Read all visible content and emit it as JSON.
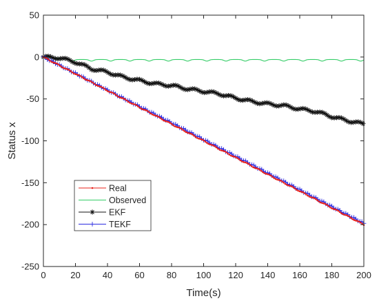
{
  "chart_data": {
    "type": "line",
    "title": "",
    "xlabel": "Time(s)",
    "ylabel": "Status x",
    "xlim": [
      0,
      200
    ],
    "ylim": [
      -250,
      50
    ],
    "xticks": [
      0,
      20,
      40,
      60,
      80,
      100,
      120,
      140,
      160,
      180,
      200
    ],
    "yticks": [
      50,
      0,
      -50,
      -100,
      -150,
      -200,
      -250
    ],
    "grid": false,
    "legend_position": "bottom-left",
    "series": [
      {
        "name": "Real",
        "color": "#e8201a",
        "marker": "dot",
        "x": [
          0,
          20,
          40,
          60,
          80,
          100,
          120,
          140,
          160,
          180,
          200
        ],
        "y": [
          0,
          -20,
          -40,
          -60,
          -80,
          -100,
          -120,
          -140,
          -160,
          -180,
          -200
        ]
      },
      {
        "name": "Observed",
        "color": "#33cc66",
        "marker": "none",
        "x": [
          0,
          5,
          10,
          15,
          20,
          30,
          40,
          60,
          80,
          100,
          120,
          140,
          160,
          180,
          200
        ],
        "y": [
          0,
          -0.5,
          -1.5,
          -2.5,
          -3,
          -3,
          -3,
          -3,
          -3,
          -3,
          -3,
          -3,
          -3,
          -3,
          -3
        ]
      },
      {
        "name": "EKF",
        "color": "#111111",
        "marker": "asterisk",
        "x": [
          0,
          10,
          20,
          30,
          40,
          50,
          60,
          70,
          80,
          90,
          100,
          110,
          120,
          130,
          140,
          150,
          160,
          170,
          180,
          190,
          200
        ],
        "y": [
          0,
          -1,
          -6,
          -14,
          -18,
          -24,
          -28,
          -32,
          -34,
          -38,
          -41,
          -44,
          -49,
          -53,
          -56,
          -58,
          -62,
          -65,
          -71,
          -76,
          -80
        ]
      },
      {
        "name": "TEKF",
        "color": "#2a2ae0",
        "marker": "plus",
        "x": [
          0,
          20,
          40,
          60,
          80,
          100,
          120,
          140,
          160,
          180,
          200
        ],
        "y": [
          0,
          -19.5,
          -39.5,
          -59,
          -78.5,
          -98.5,
          -118.5,
          -138.5,
          -158.5,
          -178.5,
          -198.5
        ]
      }
    ]
  }
}
